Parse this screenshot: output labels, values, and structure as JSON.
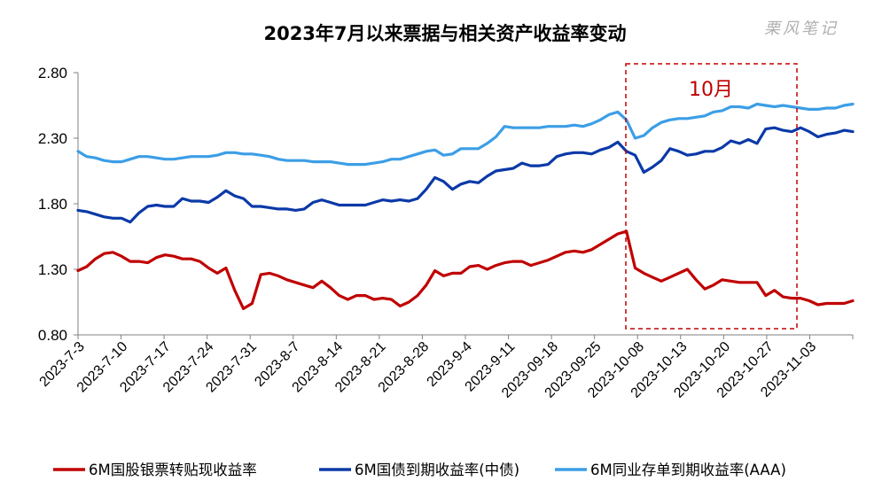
{
  "watermark": "栗风笔记",
  "chart_data": {
    "type": "line",
    "title": "2023年7月以来票据与相关资产收益率变动",
    "ylim": [
      0.8,
      2.8
    ],
    "yticks": [
      "0.80",
      "1.30",
      "1.80",
      "2.30",
      "2.80"
    ],
    "x_tick_labels": [
      "2023-7-3",
      "2023-7-10",
      "2023-7-17",
      "2023-7-24",
      "2023-7-31",
      "2023-8-7",
      "2023-8-14",
      "2023-8-21",
      "2023-8-28",
      "2023-9-4",
      "2023-9-11",
      "2023-09-18",
      "2023-09-25",
      "2023-10-08",
      "2023-10-13",
      "2023-10-20",
      "2023-10-27",
      "2023-11-03"
    ],
    "grid": false,
    "legend_position": "bottom",
    "annotation": {
      "label": "10月",
      "color": "#c00000"
    },
    "series": [
      {
        "name": "6M国股银票转贴现收益率",
        "color": "#c00000",
        "values": [
          1.29,
          1.32,
          1.38,
          1.42,
          1.43,
          1.4,
          1.36,
          1.36,
          1.35,
          1.39,
          1.41,
          1.4,
          1.38,
          1.38,
          1.36,
          1.31,
          1.27,
          1.31,
          1.14,
          1.0,
          1.04,
          1.26,
          1.27,
          1.25,
          1.22,
          1.2,
          1.18,
          1.16,
          1.21,
          1.16,
          1.1,
          1.07,
          1.1,
          1.1,
          1.07,
          1.08,
          1.07,
          1.02,
          1.05,
          1.1,
          1.18,
          1.29,
          1.25,
          1.27,
          1.27,
          1.32,
          1.33,
          1.3,
          1.33,
          1.35,
          1.36,
          1.36,
          1.33,
          1.35,
          1.37,
          1.4,
          1.43,
          1.44,
          1.43,
          1.45,
          1.49,
          1.53,
          1.57,
          1.59,
          1.31,
          1.27,
          1.24,
          1.21,
          1.24,
          1.27,
          1.3,
          1.22,
          1.15,
          1.18,
          1.22,
          1.21,
          1.2,
          1.2,
          1.2,
          1.1,
          1.14,
          1.09,
          1.08,
          1.08,
          1.06,
          1.03,
          1.04,
          1.04,
          1.04,
          1.06
        ]
      },
      {
        "name": "6M国债到期收益率(中债)",
        "color": "#0b39a8",
        "values": [
          1.75,
          1.74,
          1.72,
          1.7,
          1.69,
          1.69,
          1.66,
          1.73,
          1.78,
          1.79,
          1.78,
          1.78,
          1.84,
          1.82,
          1.82,
          1.81,
          1.85,
          1.9,
          1.86,
          1.84,
          1.78,
          1.78,
          1.77,
          1.76,
          1.76,
          1.75,
          1.76,
          1.81,
          1.83,
          1.81,
          1.79,
          1.79,
          1.79,
          1.79,
          1.81,
          1.83,
          1.82,
          1.83,
          1.82,
          1.84,
          1.91,
          2.0,
          1.97,
          1.91,
          1.95,
          1.97,
          1.96,
          2.01,
          2.05,
          2.06,
          2.07,
          2.11,
          2.09,
          2.09,
          2.1,
          2.16,
          2.18,
          2.19,
          2.19,
          2.18,
          2.21,
          2.23,
          2.27,
          2.2,
          2.17,
          2.04,
          2.08,
          2.13,
          2.22,
          2.2,
          2.17,
          2.18,
          2.2,
          2.2,
          2.23,
          2.28,
          2.26,
          2.29,
          2.26,
          2.37,
          2.38,
          2.36,
          2.35,
          2.38,
          2.35,
          2.31,
          2.33,
          2.34,
          2.36,
          2.35
        ]
      },
      {
        "name": "6M同业存单到期收益率(AAA)",
        "color": "#3c9ee6",
        "values": [
          2.2,
          2.16,
          2.15,
          2.13,
          2.12,
          2.12,
          2.14,
          2.16,
          2.16,
          2.15,
          2.14,
          2.14,
          2.15,
          2.16,
          2.16,
          2.16,
          2.17,
          2.19,
          2.19,
          2.18,
          2.18,
          2.17,
          2.16,
          2.14,
          2.13,
          2.13,
          2.13,
          2.12,
          2.12,
          2.12,
          2.11,
          2.1,
          2.1,
          2.1,
          2.11,
          2.12,
          2.14,
          2.14,
          2.16,
          2.18,
          2.2,
          2.21,
          2.17,
          2.18,
          2.22,
          2.22,
          2.22,
          2.26,
          2.31,
          2.39,
          2.38,
          2.38,
          2.38,
          2.38,
          2.39,
          2.39,
          2.39,
          2.4,
          2.39,
          2.41,
          2.44,
          2.48,
          2.5,
          2.44,
          2.3,
          2.32,
          2.38,
          2.42,
          2.44,
          2.45,
          2.45,
          2.46,
          2.47,
          2.5,
          2.51,
          2.54,
          2.54,
          2.53,
          2.56,
          2.55,
          2.54,
          2.55,
          2.54,
          2.53,
          2.52,
          2.52,
          2.53,
          2.53,
          2.55,
          2.56
        ]
      }
    ]
  }
}
